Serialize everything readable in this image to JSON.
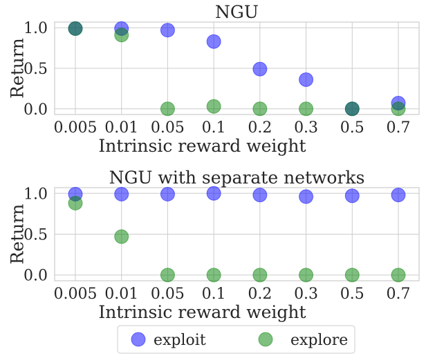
{
  "chart_data": [
    {
      "type": "scatter",
      "title": "NGU",
      "xlabel": "Intrinsic reward weight",
      "ylabel": "Return",
      "categories": [
        "0.005",
        "0.01",
        "0.05",
        "0.1",
        "0.2",
        "0.3",
        "0.5",
        "0.7"
      ],
      "ylim": [
        -0.07,
        1.07
      ],
      "yticks": [
        "0.0",
        "0.5",
        "1.0"
      ],
      "grid": true,
      "series": [
        {
          "name": "exploit",
          "color": "#0000ff",
          "values": [
            0.99,
            0.99,
            0.97,
            0.83,
            0.49,
            0.36,
            0.0,
            0.07
          ]
        },
        {
          "name": "explore",
          "color": "#008000",
          "values": [
            0.99,
            0.91,
            0.0,
            0.03,
            0.0,
            0.0,
            0.0,
            0.0
          ]
        }
      ]
    },
    {
      "type": "scatter",
      "title": "NGU with separate networks",
      "xlabel": "Intrinsic reward weight",
      "ylabel": "Return",
      "categories": [
        "0.005",
        "0.01",
        "0.05",
        "0.1",
        "0.2",
        "0.3",
        "0.5",
        "0.7"
      ],
      "ylim": [
        -0.07,
        1.07
      ],
      "yticks": [
        "0.0",
        "0.5",
        "1.0"
      ],
      "grid": true,
      "series": [
        {
          "name": "exploit",
          "color": "#0000ff",
          "values": [
            0.99,
            0.99,
            0.99,
            1.0,
            0.98,
            0.96,
            0.97,
            0.98
          ]
        },
        {
          "name": "explore",
          "color": "#008000",
          "values": [
            0.88,
            0.47,
            0.0,
            0.0,
            0.0,
            0.0,
            0.0,
            0.0
          ]
        }
      ]
    }
  ],
  "legend": {
    "placement": "bottom-center",
    "entries": [
      {
        "label": "exploit",
        "color": "#0000ff"
      },
      {
        "label": "explore",
        "color": "#008000"
      }
    ]
  }
}
